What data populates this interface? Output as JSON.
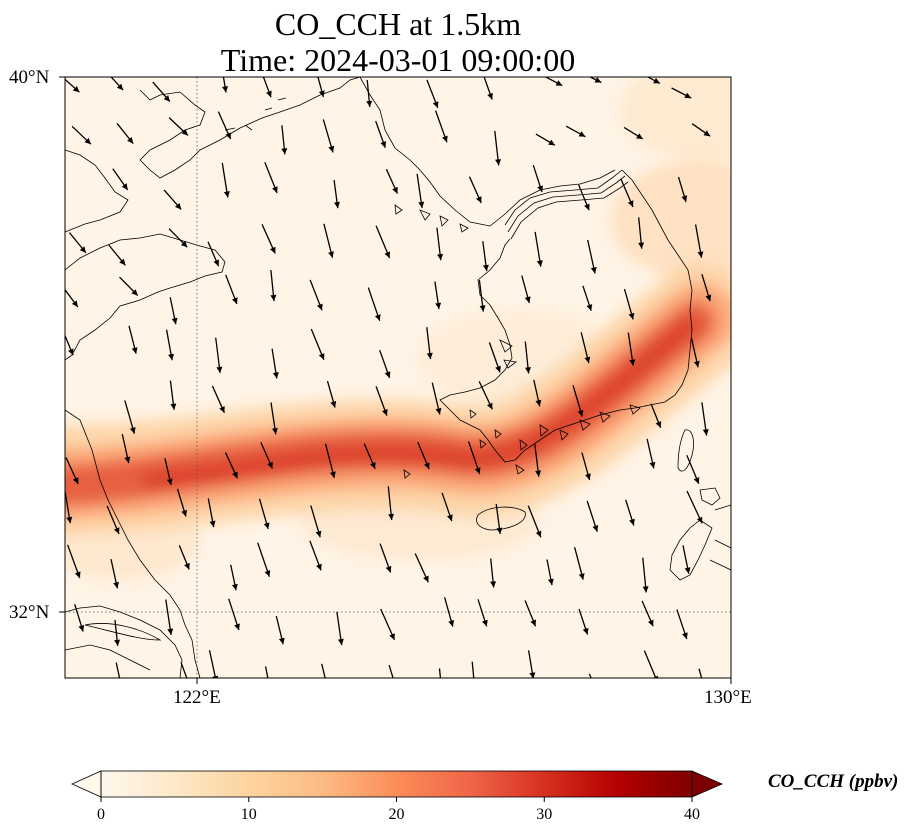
{
  "figure": {
    "title_line1": "CO_CCH at 1.5km",
    "title_line2": "Time: 2024-03-01 09:00:00"
  },
  "map": {
    "variable": "CO_CCH",
    "level": "1.5km",
    "lon_range": [
      117,
      130
    ],
    "lat_range": [
      30.7,
      40
    ],
    "gridlines_lon": [
      122,
      130
    ],
    "gridlines_lat": [
      32,
      40
    ],
    "lon_tick_labels": [
      "122°E",
      "130°E"
    ],
    "lat_tick_labels": [
      "40°N",
      "32°N"
    ],
    "features": [
      "coastline",
      "border",
      "gridlines-dotted",
      "wind-vectors",
      "concentration-field"
    ],
    "plume": {
      "description_points_lonlat": [
        [
          117,
          33.9
        ],
        [
          120,
          33.8
        ],
        [
          122,
          33.4
        ],
        [
          124,
          33.6
        ],
        [
          125.5,
          33.7
        ],
        [
          126.6,
          34.0
        ],
        [
          127.5,
          34.6
        ],
        [
          128.5,
          35.5
        ],
        [
          129.3,
          36.3
        ]
      ],
      "peak_value": 30
    },
    "wind": {
      "prevailing_direction": "north-northwest",
      "spacing_deg": 1.0
    }
  },
  "colorbar": {
    "label": "CO_CCH (ppbv)",
    "min": 0,
    "max": 40,
    "ticks": [
      "0",
      "10",
      "20",
      "30",
      "40"
    ],
    "tick_values": [
      0,
      10,
      20,
      30,
      40
    ],
    "colormap": "OrRd",
    "extend": "both",
    "stops": [
      "#fff7ec",
      "#fee8c8",
      "#fdd49e",
      "#fdbb84",
      "#fc8d59",
      "#ef6548",
      "#d7301f",
      "#b30000",
      "#7f0000"
    ]
  }
}
